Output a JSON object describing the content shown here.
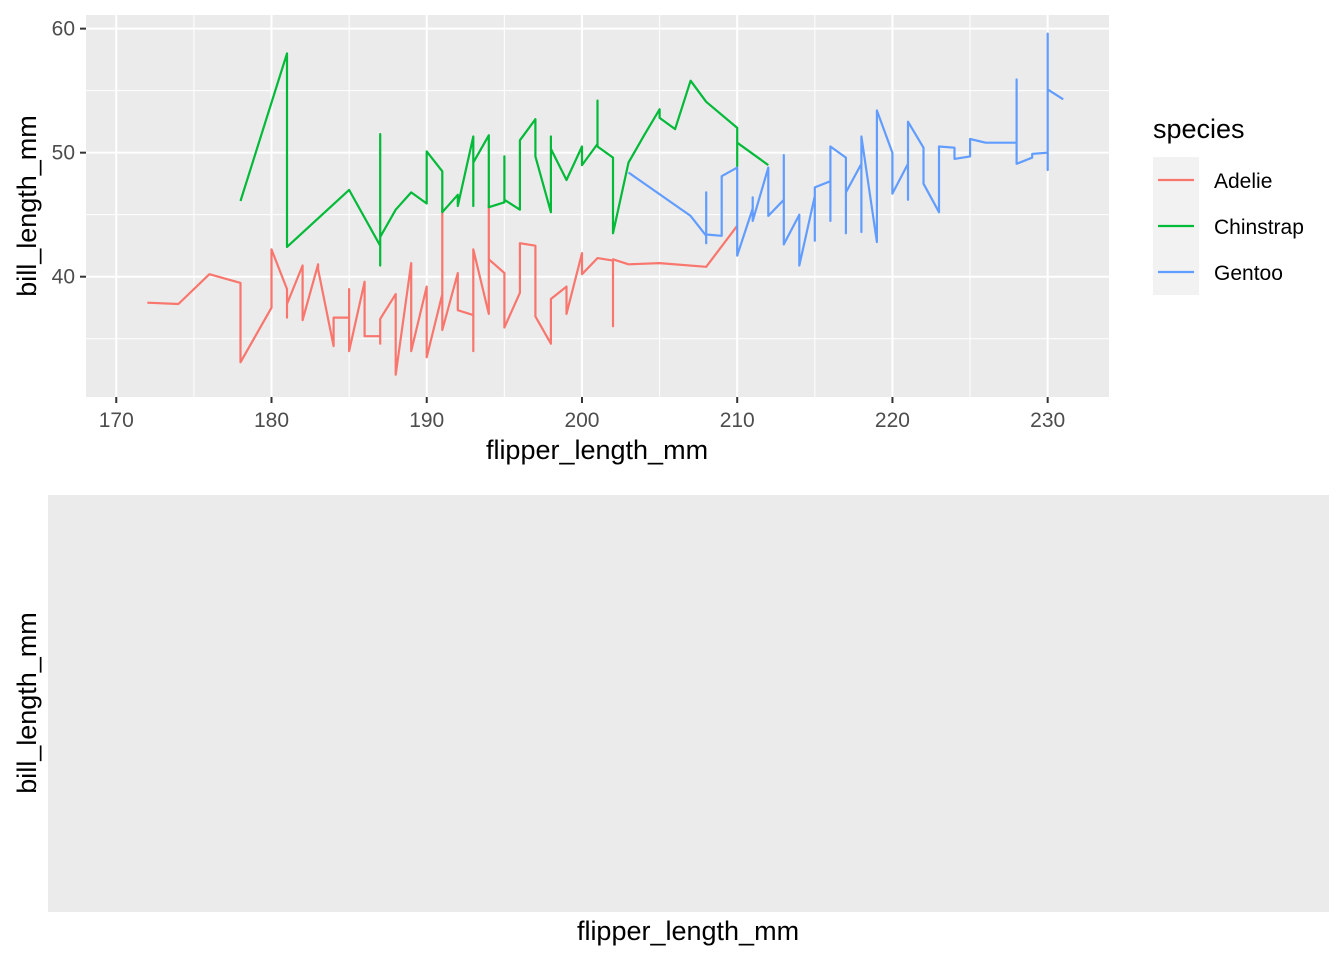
{
  "chart_data": [
    {
      "type": "line",
      "xlabel": "flipper_length_mm",
      "ylabel": "bill_length_mm",
      "xlim": [
        168.05,
        233.95
      ],
      "ylim": [
        30.3,
        61.1
      ],
      "x_ticks": [
        170,
        180,
        190,
        200,
        210,
        220,
        230
      ],
      "y_ticks": [
        40,
        50,
        60
      ],
      "grid": true,
      "legend": {
        "title": "species",
        "position": "right",
        "entries": [
          "Adelie",
          "Chinstrap",
          "Gentoo"
        ]
      },
      "colors": {
        "Adelie": "#F8766D",
        "Chinstrap": "#00BA38",
        "Gentoo": "#619CFF",
        "panel": "#EBEBEB",
        "grid": "#FFFFFF"
      },
      "series": [
        {
          "name": "Adelie",
          "points": [
            [
              172,
              37.9
            ],
            [
              174,
              37.8
            ],
            [
              176,
              40.2
            ],
            [
              178,
              39.5
            ],
            [
              178,
              33.1
            ],
            [
              178,
              33.1
            ],
            [
              180,
              37.5
            ],
            [
              180,
              37.8
            ],
            [
              180,
              42.2
            ],
            [
              181,
              39.0
            ],
            [
              181,
              36.7
            ],
            [
              181,
              37.8
            ],
            [
              182,
              40.9
            ],
            [
              182,
              36.5
            ],
            [
              183,
              41.0
            ],
            [
              183,
              40.6
            ],
            [
              184,
              34.4
            ],
            [
              184,
              36.7
            ],
            [
              185,
              36.7
            ],
            [
              185,
              39.0
            ],
            [
              185,
              34.0
            ],
            [
              186,
              39.6
            ],
            [
              186,
              35.2
            ],
            [
              187,
              35.2
            ],
            [
              187,
              34.6
            ],
            [
              187,
              36.6
            ],
            [
              188,
              38.6
            ],
            [
              188,
              32.1
            ],
            [
              189,
              41.1
            ],
            [
              189,
              34.0
            ],
            [
              190,
              39.2
            ],
            [
              190,
              33.5
            ],
            [
              191,
              38.6
            ],
            [
              191,
              45.6
            ],
            [
              191,
              35.7
            ],
            [
              192,
              40.3
            ],
            [
              192,
              37.3
            ],
            [
              193,
              36.9
            ],
            [
              193,
              34.0
            ],
            [
              193,
              42.2
            ],
            [
              194,
              37.0
            ],
            [
              194,
              45.8
            ],
            [
              194,
              41.4
            ],
            [
              195,
              40.3
            ],
            [
              195,
              35.9
            ],
            [
              196,
              38.7
            ],
            [
              196,
              42.7
            ],
            [
              197,
              42.5
            ],
            [
              197,
              36.8
            ],
            [
              198,
              34.6
            ],
            [
              198,
              38.2
            ],
            [
              199,
              39.2
            ],
            [
              199,
              37.0
            ],
            [
              200,
              41.9
            ],
            [
              200,
              40.2
            ],
            [
              201,
              41.5
            ],
            [
              202,
              41.3
            ],
            [
              202,
              36.0
            ],
            [
              202,
              41.4
            ],
            [
              203,
              41.0
            ],
            [
              205,
              41.1
            ],
            [
              208,
              40.8
            ],
            [
              210,
              44.1
            ]
          ]
        },
        {
          "name": "Chinstrap",
          "points": [
            [
              178,
              46.1
            ],
            [
              181,
              58.0
            ],
            [
              181,
              42.4
            ],
            [
              185,
              47.0
            ],
            [
              187,
              42.5
            ],
            [
              187,
              51.5
            ],
            [
              187,
              40.9
            ],
            [
              187,
              43.2
            ],
            [
              188,
              45.4
            ],
            [
              189,
              46.8
            ],
            [
              190,
              45.9
            ],
            [
              190,
              50.1
            ],
            [
              191,
              48.5
            ],
            [
              191,
              45.2
            ],
            [
              192,
              46.6
            ],
            [
              192,
              45.7
            ],
            [
              193,
              51.3
            ],
            [
              193,
              45.7
            ],
            [
              193,
              49.2
            ],
            [
              194,
              51.4
            ],
            [
              194,
              45.6
            ],
            [
              195,
              46.0
            ],
            [
              195,
              49.7
            ],
            [
              195,
              46.2
            ],
            [
              196,
              45.4
            ],
            [
              196,
              51.0
            ],
            [
              197,
              52.7
            ],
            [
              197,
              50.2
            ],
            [
              197,
              49.7
            ],
            [
              198,
              45.2
            ],
            [
              198,
              51.3
            ],
            [
              198,
              50.3
            ],
            [
              199,
              47.8
            ],
            [
              200,
              50.5
            ],
            [
              200,
              49.0
            ],
            [
              201,
              50.7
            ],
            [
              201,
              54.2
            ],
            [
              201,
              50.5
            ],
            [
              202,
              49.6
            ],
            [
              202,
              43.5
            ],
            [
              203,
              49.2
            ],
            [
              204,
              51.4
            ],
            [
              205,
              53.5
            ],
            [
              205,
              52.8
            ],
            [
              206,
              51.9
            ],
            [
              207,
              55.8
            ],
            [
              208,
              54.1
            ],
            [
              210,
              52.0
            ],
            [
              210,
              48.9
            ],
            [
              210,
              50.8
            ],
            [
              212,
              49.0
            ]
          ]
        },
        {
          "name": "Gentoo",
          "points": [
            [
              203,
              48.4
            ],
            [
              207,
              44.9
            ],
            [
              208,
              43.3
            ],
            [
              208,
              46.8
            ],
            [
              208,
              42.7
            ],
            [
              208,
              43.4
            ],
            [
              209,
              43.3
            ],
            [
              209,
              48.1
            ],
            [
              210,
              48.8
            ],
            [
              210,
              41.7
            ],
            [
              211,
              45.5
            ],
            [
              211,
              46.4
            ],
            [
              211,
              44.5
            ],
            [
              212,
              48.8
            ],
            [
              212,
              44.9
            ],
            [
              213,
              46.2
            ],
            [
              213,
              46.3
            ],
            [
              213,
              49.8
            ],
            [
              213,
              42.6
            ],
            [
              214,
              45.0
            ],
            [
              214,
              40.9
            ],
            [
              215,
              46.5
            ],
            [
              215,
              42.9
            ],
            [
              215,
              47.2
            ],
            [
              216,
              47.7
            ],
            [
              216,
              44.5
            ],
            [
              216,
              50.5
            ],
            [
              217,
              49.6
            ],
            [
              217,
              43.5
            ],
            [
              217,
              46.8
            ],
            [
              218,
              49.1
            ],
            [
              218,
              43.6
            ],
            [
              218,
              51.3
            ],
            [
              219,
              42.8
            ],
            [
              219,
              53.4
            ],
            [
              220,
              50.0
            ],
            [
              220,
              46.7
            ],
            [
              221,
              49.1
            ],
            [
              221,
              46.2
            ],
            [
              221,
              52.5
            ],
            [
              222,
              50.4
            ],
            [
              222,
              47.5
            ],
            [
              223,
              45.2
            ],
            [
              223,
              50.5
            ],
            [
              224,
              50.4
            ],
            [
              224,
              49.5
            ],
            [
              225,
              49.7
            ],
            [
              225,
              51.1
            ],
            [
              226,
              50.8
            ],
            [
              228,
              50.8
            ],
            [
              228,
              55.9
            ],
            [
              228,
              49.1
            ],
            [
              229,
              49.6
            ],
            [
              229,
              49.9
            ],
            [
              230,
              50.0
            ],
            [
              230,
              59.6
            ],
            [
              230,
              48.6
            ],
            [
              230,
              55.1
            ],
            [
              231,
              54.3
            ]
          ]
        }
      ]
    },
    {
      "type": "line",
      "xlabel": "flipper_length_mm",
      "ylabel": "bill_length_mm",
      "grid": false,
      "series": []
    }
  ]
}
